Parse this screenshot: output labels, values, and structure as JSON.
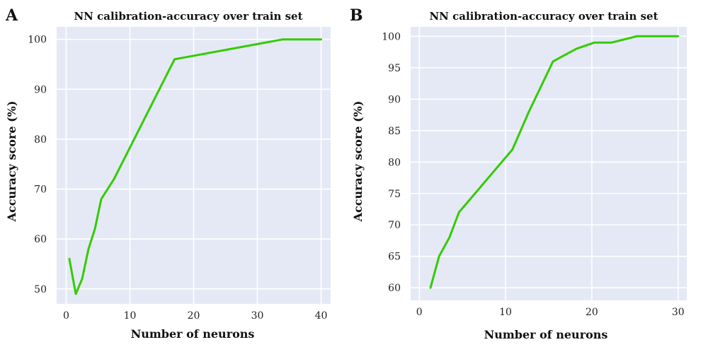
{
  "colors": {
    "plot_background": "#e5e9f6",
    "grid": "#ffffff",
    "series": "#33cc00"
  },
  "chart_data": [
    {
      "panel": "A",
      "type": "line",
      "title": "NN calibration-accuracy over train set",
      "xlabel": "Number of neurons",
      "ylabel": "Accuracy score (%)",
      "xlim": [
        -1.5,
        41.5
      ],
      "ylim": [
        47,
        102.5
      ],
      "xticks": [
        0,
        10,
        20,
        30,
        40
      ],
      "yticks": [
        50,
        60,
        70,
        80,
        90,
        100
      ],
      "grid": true,
      "series": [
        {
          "x": [
            0.5,
            1.5,
            2.5,
            3.5,
            4.5,
            5.5,
            6.5,
            7.5,
            17,
            34,
            40
          ],
          "y": [
            56,
            49,
            52,
            58,
            62,
            68,
            70,
            72,
            96,
            100,
            100
          ]
        }
      ]
    },
    {
      "panel": "B",
      "type": "line",
      "title": "NN calibration-accuracy over train set",
      "xlabel": "Number of neurons",
      "ylabel": "Accuracy score (%)",
      "xlim": [
        -1,
        31
      ],
      "ylim": [
        58,
        101.5
      ],
      "xticks": [
        0,
        10,
        20,
        30
      ],
      "yticks": [
        60,
        65,
        70,
        75,
        80,
        85,
        90,
        95,
        100
      ],
      "grid": true,
      "series": [
        {
          "x": [
            1.3,
            2.3,
            3.5,
            4.6,
            10.8,
            12.7,
            15.5,
            18.2,
            20.3,
            22.3,
            25.2,
            30
          ],
          "y": [
            60,
            65,
            68,
            72,
            82,
            88,
            96,
            98,
            99,
            99,
            100,
            100
          ]
        }
      ]
    }
  ]
}
